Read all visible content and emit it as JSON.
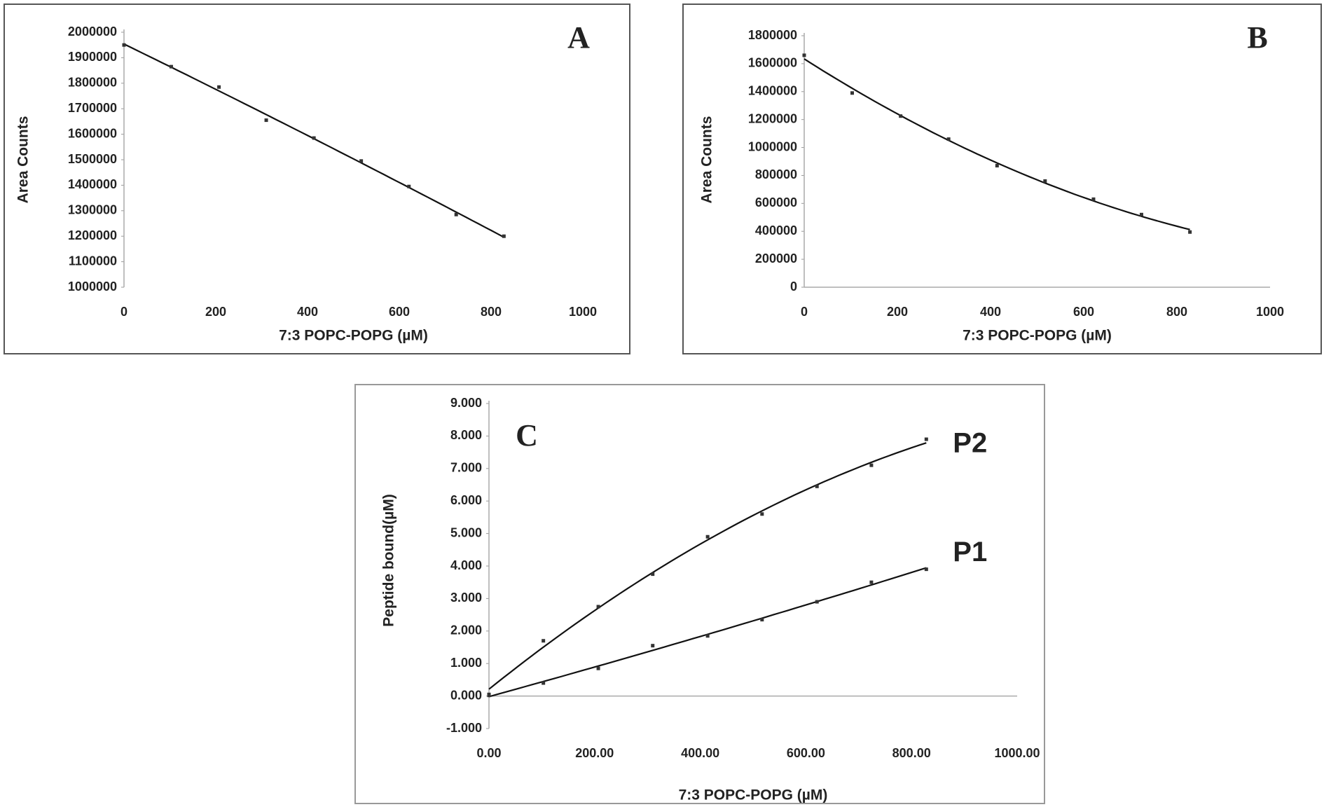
{
  "chart_data": [
    {
      "type": "scatter",
      "title": "A",
      "x_label": "7:3 POPC-POPG (µM)",
      "y_label": "Area Counts",
      "x": [
        0,
        103,
        207,
        310,
        414,
        517,
        621,
        724,
        828
      ],
      "series": [
        {
          "color": "#333333",
          "values": [
            1950000,
            1865000,
            1785000,
            1655000,
            1585000,
            1495000,
            1395000,
            1285000,
            1200000
          ]
        }
      ],
      "xlim": [
        0,
        1000
      ],
      "xticks": [
        0,
        200,
        400,
        600,
        800,
        1000
      ],
      "ylim": [
        1000000,
        2000000
      ],
      "yticks": [
        1000000,
        1100000,
        1200000,
        1300000,
        1400000,
        1500000,
        1600000,
        1700000,
        1800000,
        1900000,
        2000000
      ]
    },
    {
      "type": "scatter",
      "title": "B",
      "x_label": "7:3 POPC-POPG (µM)",
      "y_label": "Area Counts",
      "x": [
        0,
        103,
        207,
        310,
        414,
        517,
        621,
        724,
        828
      ],
      "series": [
        {
          "color": "#333333",
          "values": [
            1660000,
            1390000,
            1225000,
            1060000,
            870000,
            760000,
            630000,
            520000,
            395000
          ]
        }
      ],
      "xlim": [
        0,
        1000
      ],
      "xticks": [
        0,
        200,
        400,
        600,
        800,
        1000
      ],
      "ylim": [
        0,
        1800000
      ],
      "yticks": [
        0,
        200000,
        400000,
        600000,
        800000,
        1000000,
        1200000,
        1400000,
        1600000,
        1800000
      ]
    },
    {
      "type": "scatter",
      "title": "C",
      "x_label": "7:3 POPC-POPG (µM)",
      "y_label": "Peptide bound(µM)",
      "x": [
        0,
        103,
        207,
        310,
        414,
        517,
        621,
        724,
        828
      ],
      "series": [
        {
          "name": "P2",
          "color": "#333333",
          "values": [
            0.05,
            1.7,
            2.75,
            3.75,
            4.9,
            5.6,
            6.45,
            7.1,
            7.9
          ]
        },
        {
          "name": "P1",
          "color": "#333333",
          "values": [
            0.02,
            0.4,
            0.85,
            1.55,
            1.85,
            2.35,
            2.9,
            3.5,
            3.9
          ]
        }
      ],
      "xlim": [
        0,
        1000
      ],
      "xticks": [
        {
          "value": 0,
          "label": "0.00"
        },
        {
          "value": 200,
          "label": "200.00"
        },
        {
          "value": 400,
          "label": "400.00"
        },
        {
          "value": 600,
          "label": "600.00"
        },
        {
          "value": 800,
          "label": "800.00"
        },
        {
          "value": 1000,
          "label": "1000.00"
        }
      ],
      "ylim": [
        -1,
        9
      ],
      "yticks": [
        {
          "value": -1,
          "label": "-1.000"
        },
        {
          "value": 0,
          "label": "0.000"
        },
        {
          "value": 1,
          "label": "1.000"
        },
        {
          "value": 2,
          "label": "2.000"
        },
        {
          "value": 3,
          "label": "3.000"
        },
        {
          "value": 4,
          "label": "4.000"
        },
        {
          "value": 5,
          "label": "5.000"
        },
        {
          "value": 6,
          "label": "6.000"
        },
        {
          "value": 7,
          "label": "7.000"
        },
        {
          "value": 8,
          "label": "8.000"
        },
        {
          "value": 9,
          "label": "9.000"
        }
      ]
    }
  ]
}
